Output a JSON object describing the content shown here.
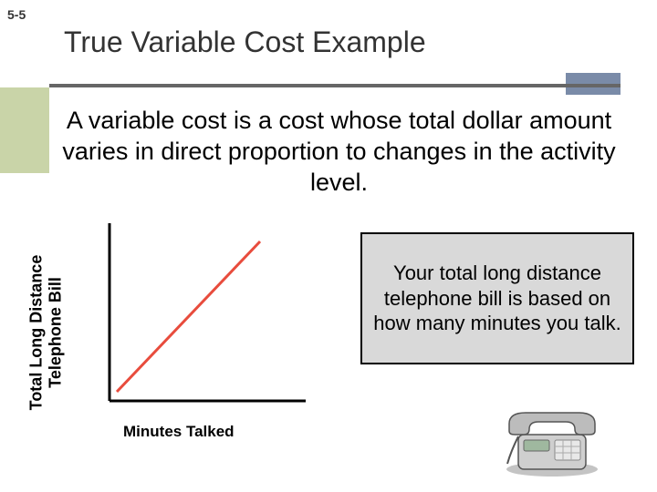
{
  "slide": {
    "number": "5-5",
    "title": "True Variable Cost Example",
    "body": "A variable cost is a cost whose total dollar amount varies in direct proportion to changes in the activity level."
  },
  "chart": {
    "type": "line",
    "y_axis_label_line1": "Total Long Distance",
    "y_axis_label_line2": "Telephone Bill",
    "x_axis_label": "Minutes Talked",
    "axis_color": "#000000",
    "axis_width": 3,
    "line_color": "#e84c3d",
    "line_width": 3,
    "line_start": [
      18,
      190
    ],
    "line_end": [
      175,
      25
    ],
    "background_color": "#ffffff"
  },
  "callout": {
    "text": "Your total long distance telephone bill is based on how many minutes you talk.",
    "bg_color": "#d9d9d9",
    "border_color": "#000000",
    "font_size": 22
  },
  "colors": {
    "accent_block": "#7a8ba8",
    "left_stripe": "#c9d4a8",
    "underline": "#666666"
  }
}
